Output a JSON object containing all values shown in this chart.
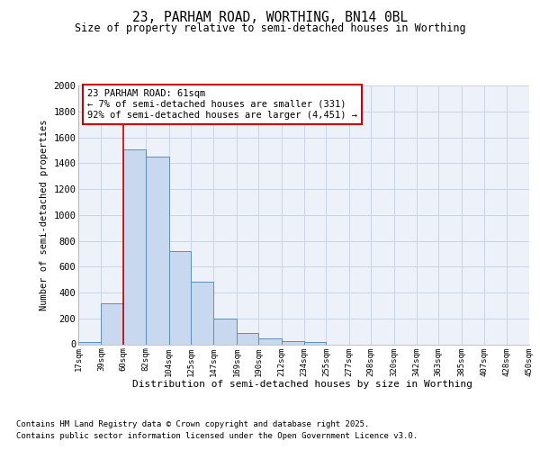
{
  "title": "23, PARHAM ROAD, WORTHING, BN14 0BL",
  "subtitle": "Size of property relative to semi-detached houses in Worthing",
  "xlabel": "Distribution of semi-detached houses by size in Worthing",
  "ylabel": "Number of semi-detached properties",
  "bins": [
    17,
    39,
    60,
    82,
    104,
    125,
    147,
    169,
    190,
    212,
    234,
    255,
    277,
    298,
    320,
    342,
    363,
    385,
    407,
    428,
    450
  ],
  "counts": [
    20,
    315,
    1505,
    1450,
    720,
    485,
    195,
    90,
    47,
    25,
    15,
    0,
    0,
    0,
    0,
    0,
    0,
    0,
    0,
    0
  ],
  "bar_color": "#c8d8ef",
  "bar_edge_color": "#5b8ec4",
  "grid_color": "#c8d4e8",
  "bg_color": "#edf2fa",
  "vline_x": 60,
  "vline_color": "#cc0000",
  "annotation_text": "23 PARHAM ROAD: 61sqm\n← 7% of semi-detached houses are smaller (331)\n92% of semi-detached houses are larger (4,451) →",
  "annotation_box_color": "#ffffff",
  "annotation_box_edge": "#cc0000",
  "footer_line1": "Contains HM Land Registry data © Crown copyright and database right 2025.",
  "footer_line2": "Contains public sector information licensed under the Open Government Licence v3.0.",
  "ylim": [
    0,
    2000
  ],
  "yticks": [
    0,
    200,
    400,
    600,
    800,
    1000,
    1200,
    1400,
    1600,
    1800,
    2000
  ],
  "tick_labels": [
    "17sqm",
    "39sqm",
    "60sqm",
    "82sqm",
    "104sqm",
    "125sqm",
    "147sqm",
    "169sqm",
    "190sqm",
    "212sqm",
    "234sqm",
    "255sqm",
    "277sqm",
    "298sqm",
    "320sqm",
    "342sqm",
    "363sqm",
    "385sqm",
    "407sqm",
    "428sqm",
    "450sqm"
  ]
}
